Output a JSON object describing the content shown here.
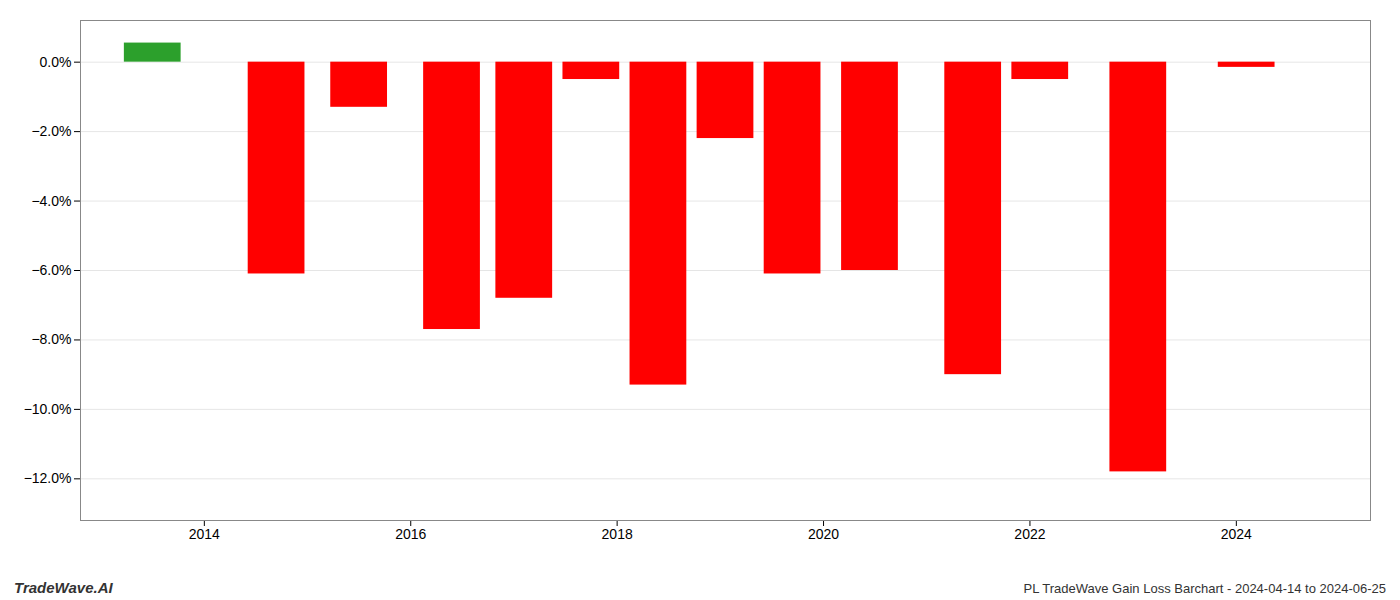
{
  "chart_data": {
    "type": "bar",
    "title": "PL TradeWave Gain Loss Barchart - 2024-04-14 to 2024-06-25",
    "annotations": [
      "TradeWave.AI"
    ],
    "x": [
      2013.5,
      2014.7,
      2015.5,
      2016.4,
      2017.1,
      2017.75,
      2018.4,
      2019.05,
      2019.7,
      2020.45,
      2021.45,
      2022.1,
      2023.05,
      2024.1
    ],
    "values": [
      0.55,
      -6.1,
      -1.3,
      -7.7,
      -6.8,
      -0.5,
      -9.3,
      -2.2,
      -6.1,
      -6.0,
      -9.0,
      -0.5,
      -11.8,
      -0.15
    ],
    "colors": [
      "#2ca02c",
      "#ff0000",
      "#ff0000",
      "#ff0000",
      "#ff0000",
      "#ff0000",
      "#ff0000",
      "#ff0000",
      "#ff0000",
      "#ff0000",
      "#ff0000",
      "#ff0000",
      "#ff0000",
      "#ff0000"
    ],
    "xlim": [
      2012.8,
      2025.3
    ],
    "xticks": [
      2014,
      2016,
      2018,
      2020,
      2022,
      2024
    ],
    "ylim": [
      -13.2,
      1.2
    ],
    "yticks": [
      {
        "value": 0.0,
        "label": "0.0%"
      },
      {
        "value": -2.0,
        "label": "−2.0%"
      },
      {
        "value": -4.0,
        "label": "−4.0%"
      },
      {
        "value": -6.0,
        "label": "−6.0%"
      },
      {
        "value": -8.0,
        "label": "−8.0%"
      },
      {
        "value": -10.0,
        "label": "−10.0%"
      },
      {
        "value": -12.0,
        "label": "−12.0%"
      }
    ],
    "grid": true
  }
}
